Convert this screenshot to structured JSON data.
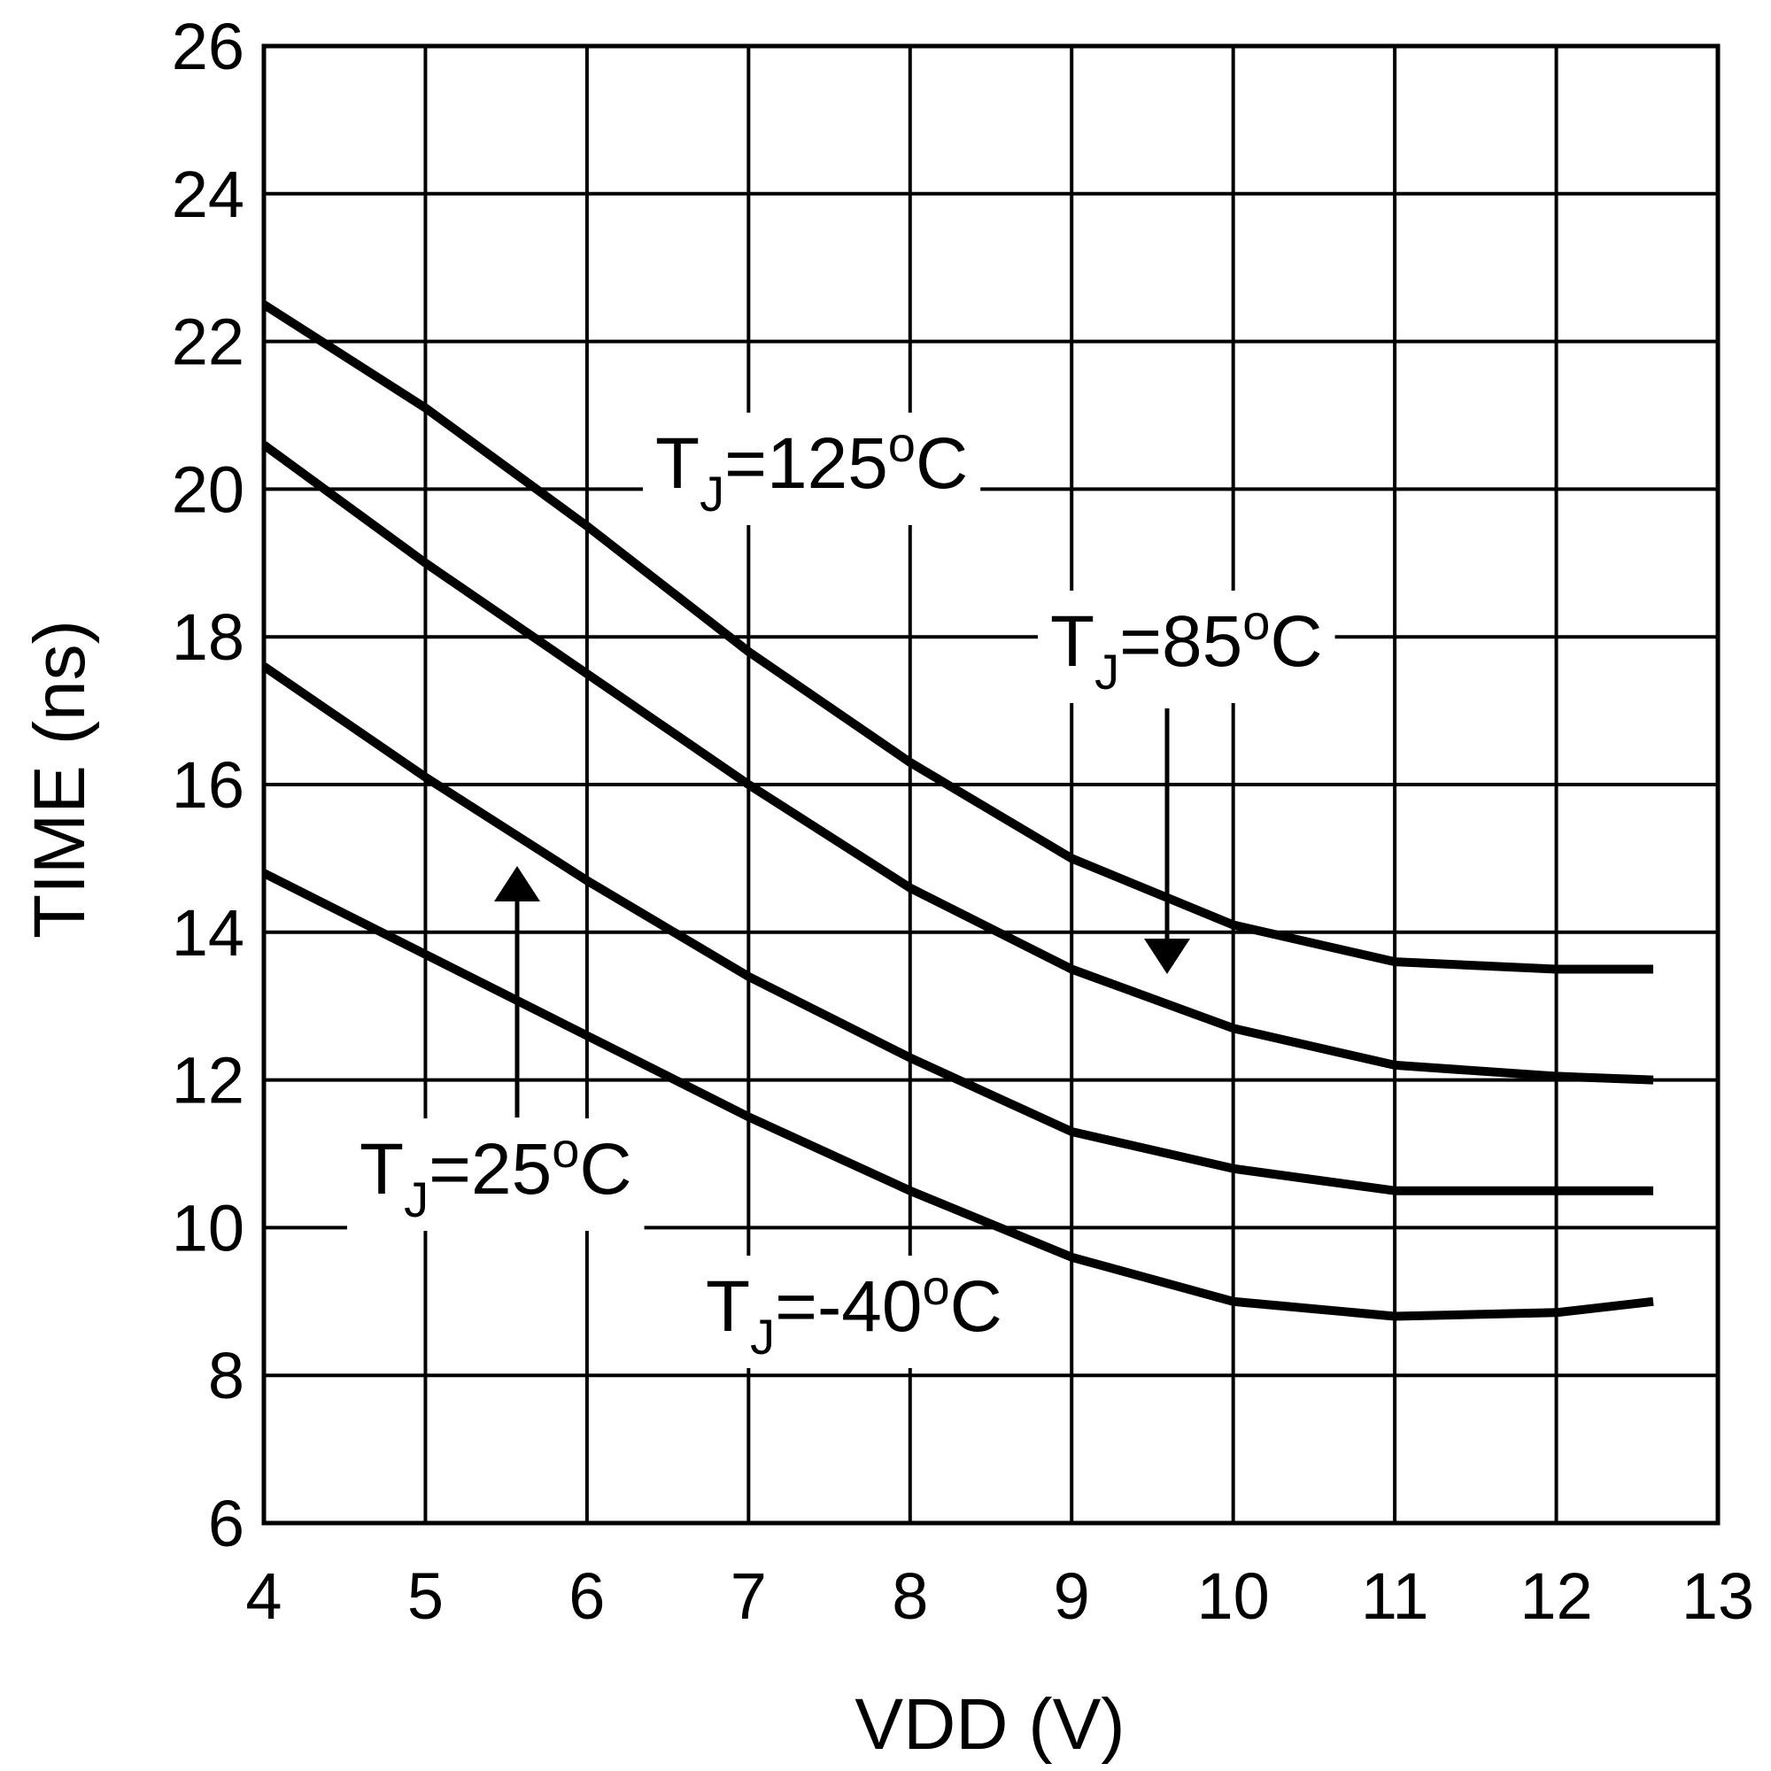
{
  "chart_data": {
    "type": "line",
    "x_label": "VDD (V)",
    "y_label": "TIME (ns)",
    "x": [
      4,
      5,
      6,
      7,
      8,
      9,
      10,
      11,
      12,
      12.6
    ],
    "series": [
      {
        "label": {
          "base": "T",
          "sub": "J",
          "text": "=125",
          "sup": "o",
          "unit": "C"
        },
        "color": "#000000",
        "values": [
          22.5,
          21.1,
          19.5,
          17.8,
          16.3,
          15.0,
          14.1,
          13.6,
          13.5,
          13.5
        ]
      },
      {
        "label": {
          "base": "T",
          "sub": "J",
          "text": "=85",
          "sup": "o",
          "unit": "C"
        },
        "color": "#000000",
        "values": [
          20.6,
          19.0,
          17.5,
          16.0,
          14.6,
          13.5,
          12.7,
          12.2,
          12.05,
          12.0
        ]
      },
      {
        "label": {
          "base": "T",
          "sub": "J",
          "text": "=25",
          "sup": "o",
          "unit": "C"
        },
        "color": "#000000",
        "values": [
          17.6,
          16.1,
          14.7,
          13.4,
          12.3,
          11.3,
          10.8,
          10.5,
          10.5,
          10.5
        ]
      },
      {
        "label": {
          "base": "T",
          "sub": "J",
          "text": "=-40",
          "sup": "o",
          "unit": "C"
        },
        "color": "#000000",
        "values": [
          14.8,
          13.7,
          12.6,
          11.5,
          10.5,
          9.6,
          9.0,
          8.8,
          8.85,
          9.0
        ]
      }
    ],
    "xlim": [
      4,
      13
    ],
    "xticks": [
      4,
      5,
      6,
      7,
      8,
      9,
      10,
      11,
      12,
      13
    ],
    "ylim": [
      6,
      26
    ],
    "yticks": [
      6,
      8,
      10,
      12,
      14,
      16,
      18,
      20,
      22,
      24,
      26
    ],
    "grid": true
  }
}
